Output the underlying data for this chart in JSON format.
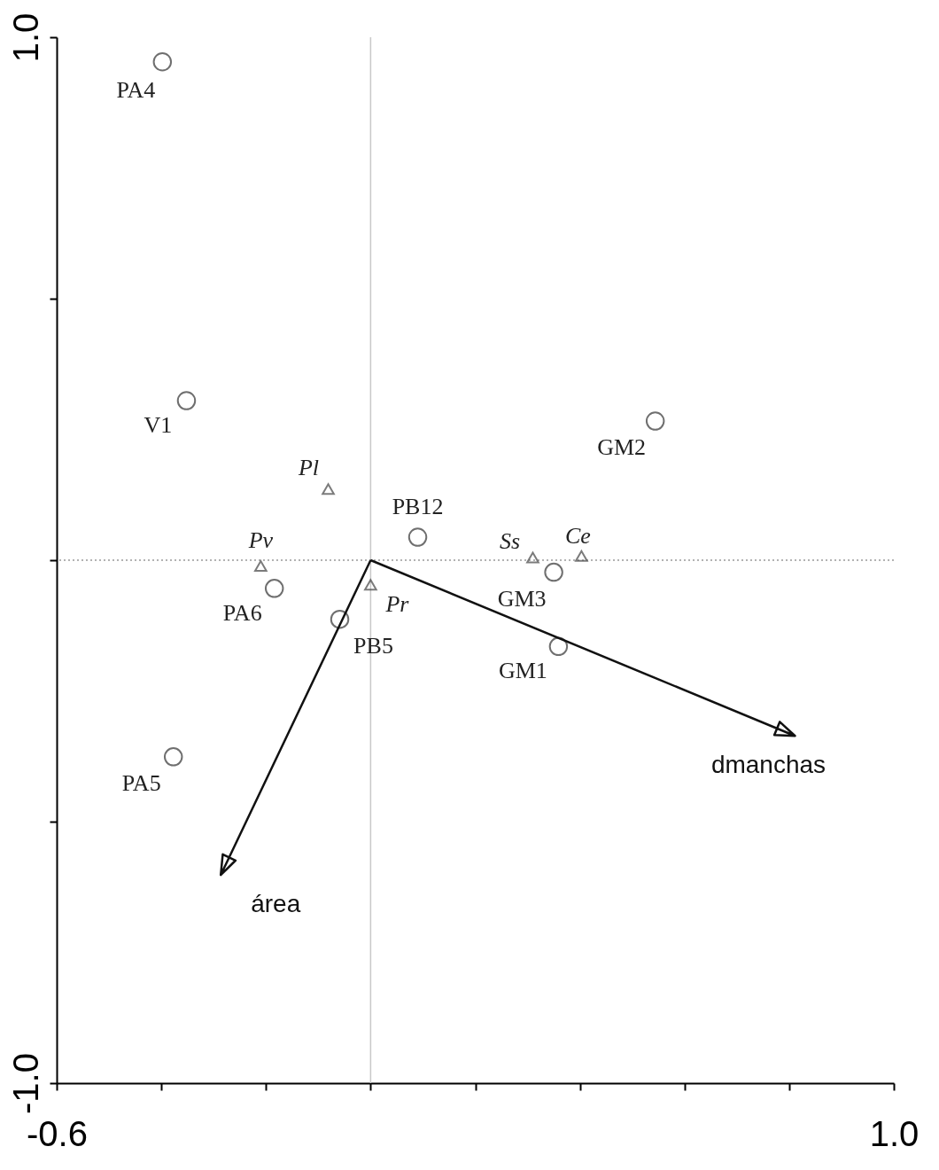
{
  "chart_data": {
    "type": "scatter",
    "xlim": [
      -0.6,
      1.0
    ],
    "ylim": [
      -1.0,
      1.0
    ],
    "xticks": [
      {
        "value": -0.6,
        "label": "-0.6"
      },
      {
        "value": -0.4,
        "label": null
      },
      {
        "value": -0.2,
        "label": null
      },
      {
        "value": 0,
        "label": null
      },
      {
        "value": 0.2,
        "label": null
      },
      {
        "value": 0.4,
        "label": null
      },
      {
        "value": 0.6,
        "label": null
      },
      {
        "value": 0.8,
        "label": null
      },
      {
        "value": 1.0,
        "label": "1.0"
      }
    ],
    "yticks": [
      {
        "value": -1.0,
        "label": "-1.0"
      },
      {
        "value": -0.5,
        "label": null
      },
      {
        "value": 0,
        "label": null
      },
      {
        "value": 0.5,
        "label": null
      },
      {
        "value": 1.0,
        "label": "1.0"
      }
    ],
    "grid": false,
    "series": [
      {
        "marker": "circle",
        "color": "#333333",
        "x": [
          -0.398,
          -0.352,
          0.544,
          0.09,
          0.35,
          0.359,
          -0.184,
          -0.059,
          -0.377
        ],
        "values": [
          0.953,
          0.305,
          0.266,
          0.044,
          -0.023,
          -0.165,
          -0.054,
          -0.113,
          -0.376
        ],
        "value_labels": [
          "PA4",
          "V1",
          "GM2",
          "PB12",
          "GM3",
          "GM1",
          "PA6",
          "PB5",
          "PA5"
        ]
      },
      {
        "marker": "triangle",
        "color": "#444444",
        "x": [
          -0.081,
          -0.21,
          0.0,
          0.31,
          0.403
        ],
        "values": [
          0.136,
          -0.011,
          -0.047,
          0.005,
          0.008
        ],
        "value_labels": [
          "Pl",
          "Pv",
          "Pr",
          "Ss",
          "Ce"
        ]
      }
    ],
    "annotations": [
      "dmanchas",
      "área"
    ],
    "ref_lines": [
      {
        "axis": "x",
        "value": 0,
        "color": "#c8c8c8",
        "line_style": "solid"
      },
      {
        "axis": "y",
        "value": 0,
        "color": "#999999",
        "line_style": "dotted"
      }
    ]
  }
}
